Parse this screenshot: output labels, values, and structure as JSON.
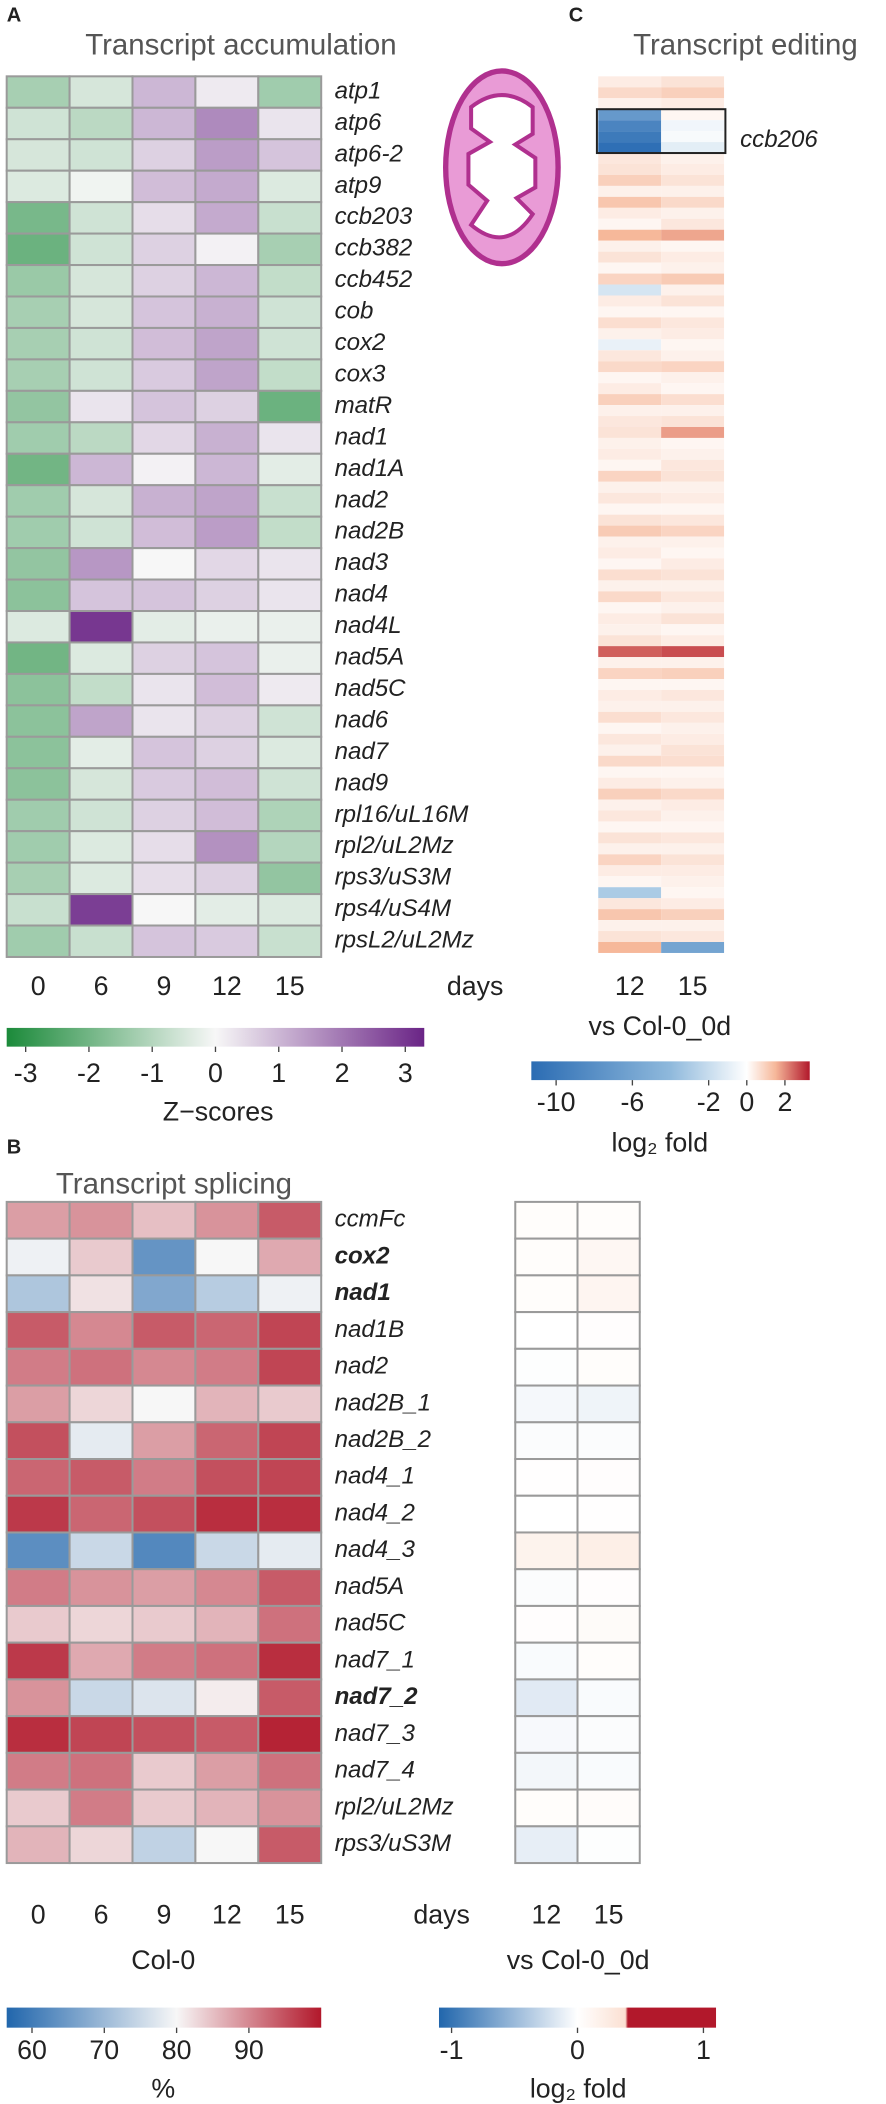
{
  "chart_data": [
    {
      "type": "heatmap",
      "panel": "A",
      "title": "Transcript accumulation",
      "rows": [
        "atp1",
        "atp6",
        "atp6-2",
        "atp9",
        "ccb203",
        "ccb382",
        "ccb452",
        "cob",
        "cox2",
        "cox3",
        "matR",
        "nad1",
        "nad1A",
        "nad2",
        "nad2B",
        "nad3",
        "nad4",
        "nad4L",
        "nad5A",
        "nad5C",
        "nad6",
        "nad7",
        "nad9",
        "rpl16/uL16M",
        "rpl2/uL2Mz",
        "rps3/uS3M",
        "rps4/uS4M",
        "rpsL2/uL2Mz"
      ],
      "columns": [
        "0",
        "6",
        "9",
        "12",
        "15"
      ],
      "x_label": "days",
      "values": [
        [
          -1.2,
          -0.5,
          1.0,
          0.2,
          -1.3
        ],
        [
          -0.6,
          -0.9,
          1.0,
          1.7,
          0.3
        ],
        [
          -0.5,
          -0.6,
          0.6,
          1.4,
          0.8
        ],
        [
          -0.4,
          -0.1,
          0.9,
          1.2,
          -0.4
        ],
        [
          -1.9,
          -0.6,
          0.4,
          1.2,
          -0.7
        ],
        [
          -2.1,
          -0.6,
          0.6,
          0.1,
          -1.2
        ],
        [
          -1.4,
          -0.5,
          0.6,
          1.0,
          -0.8
        ],
        [
          -1.2,
          -0.5,
          0.8,
          1.1,
          -0.6
        ],
        [
          -1.2,
          -0.6,
          0.9,
          1.3,
          -0.6
        ],
        [
          -1.2,
          -0.6,
          0.7,
          1.3,
          -0.8
        ],
        [
          -1.5,
          0.3,
          0.8,
          0.6,
          -2.1
        ],
        [
          -1.3,
          -0.9,
          0.5,
          1.1,
          0.3
        ],
        [
          -2.0,
          1.0,
          0.1,
          1.0,
          -0.3
        ],
        [
          -1.3,
          -0.5,
          1.1,
          1.3,
          -0.7
        ],
        [
          -1.3,
          -0.6,
          0.9,
          1.4,
          -0.8
        ],
        [
          -1.5,
          1.5,
          0.0,
          0.5,
          0.3
        ],
        [
          -1.6,
          0.8,
          0.8,
          0.6,
          0.3
        ],
        [
          -0.4,
          3.0,
          -0.3,
          -0.2,
          -0.2
        ],
        [
          -2.0,
          -0.4,
          0.6,
          0.8,
          -0.2
        ],
        [
          -1.6,
          -0.8,
          0.3,
          0.9,
          0.2
        ],
        [
          -1.6,
          1.3,
          0.3,
          0.6,
          -0.6
        ],
        [
          -1.6,
          -0.3,
          0.8,
          0.6,
          -0.4
        ],
        [
          -1.6,
          -0.5,
          0.7,
          0.9,
          -0.6
        ],
        [
          -1.3,
          -0.6,
          0.6,
          0.9,
          -1.1
        ],
        [
          -1.3,
          -0.4,
          0.4,
          1.6,
          -1.0
        ],
        [
          -1.2,
          -0.4,
          0.4,
          0.6,
          -1.5
        ],
        [
          -0.7,
          2.9,
          0.0,
          -0.3,
          -0.4
        ],
        [
          -1.3,
          -0.7,
          0.8,
          0.7,
          -0.7
        ]
      ],
      "colorbar": {
        "label": "Z−scores",
        "ticks": [
          -3,
          -2,
          -1,
          0,
          1,
          2,
          3
        ],
        "colorscale": [
          [
            -3.3,
            "#1b8a3a"
          ],
          [
            0,
            "#f7f7f7"
          ],
          [
            3.3,
            "#6a2486"
          ]
        ]
      }
    },
    {
      "type": "heatmap",
      "panel": "C",
      "title": "Transcript editing",
      "columns": [
        "12",
        "15"
      ],
      "x_label": "vs Col-0_0d",
      "annotation": "ccb206",
      "values": [
        [
          0.4,
          0.6
        ],
        [
          0.8,
          1.0
        ],
        [
          0.3,
          0.4
        ],
        [
          -7,
          0.2
        ],
        [
          -9,
          -0.5
        ],
        [
          -10,
          -0.3
        ],
        [
          -11,
          -1
        ],
        [
          0.5,
          0.3
        ],
        [
          0.6,
          0.4
        ],
        [
          1.0,
          0.6
        ],
        [
          0.3,
          0.3
        ],
        [
          1.2,
          0.8
        ],
        [
          0.4,
          0.3
        ],
        [
          0.2,
          0.5
        ],
        [
          1.5,
          1.7
        ],
        [
          0.3,
          0.2
        ],
        [
          0.6,
          0.4
        ],
        [
          0.2,
          0.3
        ],
        [
          0.9,
          1.1
        ],
        [
          -1.5,
          0.3
        ],
        [
          0.4,
          0.6
        ],
        [
          0.2,
          0.2
        ],
        [
          0.7,
          0.5
        ],
        [
          0.3,
          0.4
        ],
        [
          -0.8,
          0.2
        ],
        [
          0.5,
          0.3
        ],
        [
          0.8,
          0.9
        ],
        [
          0.2,
          0.3
        ],
        [
          0.4,
          0.2
        ],
        [
          1.0,
          0.7
        ],
        [
          0.3,
          0.3
        ],
        [
          0.5,
          0.6
        ],
        [
          0.6,
          1.8
        ],
        [
          0.3,
          0.2
        ],
        [
          0.4,
          0.3
        ],
        [
          0.2,
          0.5
        ],
        [
          0.9,
          0.6
        ],
        [
          0.3,
          0.3
        ],
        [
          0.5,
          0.4
        ],
        [
          0.2,
          0.2
        ],
        [
          0.6,
          0.5
        ],
        [
          1.1,
          0.9
        ],
        [
          0.3,
          0.3
        ],
        [
          0.4,
          0.2
        ],
        [
          0.2,
          0.4
        ],
        [
          0.7,
          0.6
        ],
        [
          0.3,
          0.3
        ],
        [
          0.8,
          0.5
        ],
        [
          0.2,
          0.3
        ],
        [
          0.4,
          0.6
        ],
        [
          0.3,
          0.2
        ],
        [
          0.6,
          0.4
        ],
        [
          2.5,
          2.7
        ],
        [
          0.3,
          0.3
        ],
        [
          0.9,
          1.0
        ],
        [
          0.2,
          0.2
        ],
        [
          0.4,
          0.5
        ],
        [
          0.3,
          0.3
        ],
        [
          0.7,
          0.5
        ],
        [
          0.2,
          0.3
        ],
        [
          0.5,
          0.4
        ],
        [
          0.3,
          0.6
        ],
        [
          0.8,
          0.7
        ],
        [
          0.2,
          0.2
        ],
        [
          0.4,
          0.3
        ],
        [
          1.0,
          0.8
        ],
        [
          0.3,
          0.4
        ],
        [
          0.5,
          0.3
        ],
        [
          0.2,
          0.2
        ],
        [
          0.6,
          0.5
        ],
        [
          0.3,
          0.3
        ],
        [
          0.9,
          0.6
        ],
        [
          0.4,
          0.4
        ],
        [
          0.2,
          0.3
        ],
        [
          -3,
          0.2
        ],
        [
          0.5,
          0.4
        ],
        [
          1.2,
          1.0
        ],
        [
          0.3,
          0.3
        ],
        [
          0.6,
          0.5
        ],
        [
          1.5,
          -6
        ]
      ],
      "colorbar": {
        "label": "log₂ fold",
        "ticks": [
          -10,
          -6,
          -2,
          0,
          2
        ],
        "colorscale": [
          [
            -11.3,
            "#2b6cb3"
          ],
          [
            -4,
            "#8fb9dc"
          ],
          [
            0,
            "#ffffff"
          ],
          [
            1.5,
            "#f6b89a"
          ],
          [
            3.3,
            "#b2182b"
          ]
        ]
      }
    },
    {
      "type": "heatmap",
      "panel": "B",
      "title": "Transcript splicing",
      "rows": [
        {
          "label": "ccmFc",
          "bold": false
        },
        {
          "label": "cox2",
          "bold": true
        },
        {
          "label": "nad1",
          "bold": true
        },
        {
          "label": "nad1B",
          "bold": false
        },
        {
          "label": "nad2",
          "bold": false
        },
        {
          "label": "nad2B_1",
          "bold": false
        },
        {
          "label": "nad2B_2",
          "bold": false
        },
        {
          "label": "nad4_1",
          "bold": false
        },
        {
          "label": "nad4_2",
          "bold": false
        },
        {
          "label": "nad4_3",
          "bold": false
        },
        {
          "label": "nad5A",
          "bold": false
        },
        {
          "label": "nad5C",
          "bold": false
        },
        {
          "label": "nad7_1",
          "bold": false
        },
        {
          "label": "nad7_2",
          "bold": true
        },
        {
          "label": "nad7_3",
          "bold": false
        },
        {
          "label": "nad7_4",
          "bold": false
        },
        {
          "label": "rpl2/uL2Mz",
          "bold": false
        },
        {
          "label": "rps3/uS3M",
          "bold": false
        }
      ],
      "columns": [
        "0",
        "6",
        "9",
        "12",
        "15"
      ],
      "x_label": "days",
      "group_label": "Col-0",
      "values": [
        [
          88,
          89,
          85,
          89,
          94
        ],
        [
          79,
          84,
          64,
          80,
          87
        ],
        [
          72,
          82,
          67,
          73,
          79
        ],
        [
          94,
          90,
          94,
          93,
          96
        ],
        [
          91,
          92,
          90,
          91,
          96
        ],
        [
          88,
          83,
          80,
          86,
          84
        ],
        [
          95,
          78,
          88,
          93,
          96
        ],
        [
          93,
          94,
          91,
          95,
          96
        ],
        [
          97,
          93,
          95,
          98,
          98
        ],
        [
          63,
          75,
          62,
          75,
          78
        ],
        [
          91,
          89,
          88,
          90,
          94
        ],
        [
          84,
          83,
          84,
          86,
          92
        ],
        [
          97,
          87,
          91,
          92,
          98
        ],
        [
          89,
          75,
          77,
          81,
          94
        ],
        [
          98,
          96,
          95,
          94,
          99
        ],
        [
          91,
          92,
          84,
          88,
          92
        ],
        [
          84,
          91,
          84,
          86,
          89
        ],
        [
          86,
          83,
          74,
          80,
          94
        ]
      ],
      "colorbar": {
        "label": "%",
        "ticks": [
          60,
          70,
          80,
          90
        ],
        "colorscale": [
          [
            56.5,
            "#2166ac"
          ],
          [
            80,
            "#f7f7f7"
          ],
          [
            100,
            "#b2182b"
          ]
        ]
      }
    },
    {
      "type": "heatmap",
      "columns": [
        "12",
        "15"
      ],
      "x_label": "vs Col-0_0d",
      "values": [
        [
          0.03,
          0.03
        ],
        [
          0.03,
          0.1
        ],
        [
          0.03,
          0.12
        ],
        [
          0.0,
          0.02
        ],
        [
          -0.01,
          0.03
        ],
        [
          -0.05,
          -0.08
        ],
        [
          -0.02,
          -0.02
        ],
        [
          0.01,
          0.02
        ],
        [
          0.0,
          0.01
        ],
        [
          0.15,
          0.2
        ],
        [
          -0.02,
          0.02
        ],
        [
          0.02,
          0.05
        ],
        [
          -0.03,
          0.03
        ],
        [
          -0.15,
          -0.03
        ],
        [
          -0.04,
          -0.02
        ],
        [
          -0.06,
          -0.03
        ],
        [
          0.03,
          0.04
        ],
        [
          -0.12,
          -0.01
        ]
      ],
      "colorbar": {
        "label": "log₂ fold",
        "ticks": [
          -1,
          0,
          1
        ],
        "colorscale": [
          [
            -1.1,
            "#2166ac"
          ],
          [
            0,
            "#ffffff"
          ],
          [
            0.38,
            "#fbe0d2"
          ],
          [
            0.4,
            "#b2182b"
          ],
          [
            1.1,
            "#b2182b"
          ]
        ]
      }
    }
  ]
}
